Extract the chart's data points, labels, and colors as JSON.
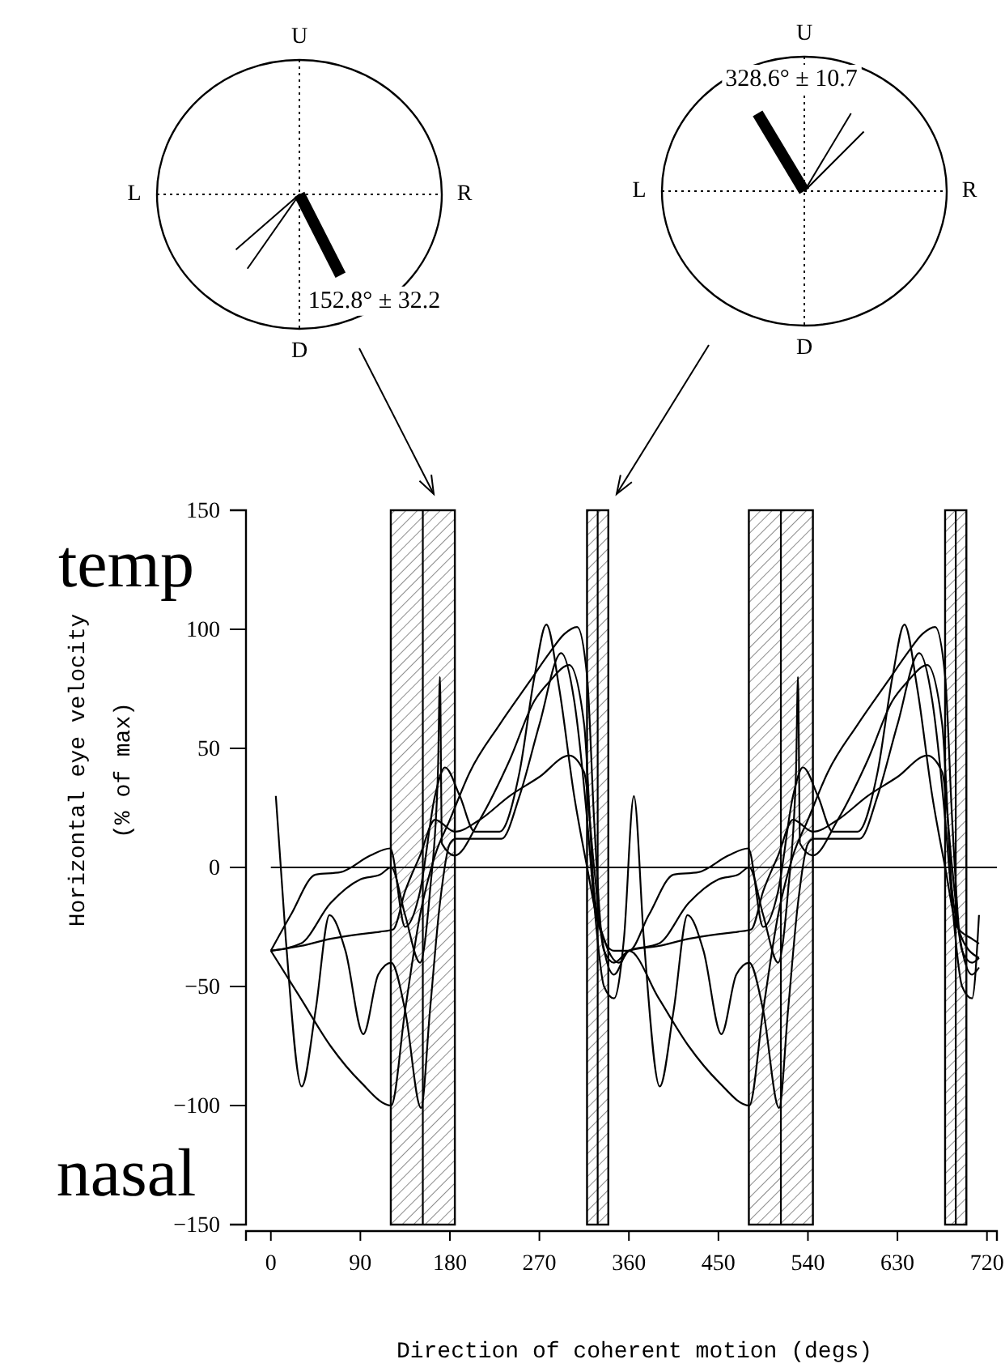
{
  "chart_data": [
    {
      "type": "other",
      "annotations": [
        "U",
        "R",
        "D",
        "L",
        "152.8° ± 32.2"
      ]
    },
    {
      "type": "other",
      "annotations": [
        "U",
        "R",
        "D",
        "L",
        "328.6° ± 10.7"
      ]
    },
    {
      "type": "line",
      "xlabel": "Direction of coherent motion (degs)",
      "ylabel": "Horizontal eye velocity\n(% of max)",
      "annotations": [
        "temp",
        "nasal"
      ],
      "xlim": [
        -25,
        730
      ],
      "ylim": [
        -150,
        150
      ],
      "xticks": [
        0,
        90,
        180,
        270,
        360,
        450,
        540,
        630,
        720
      ],
      "yticks": [
        -150,
        -100,
        -50,
        0,
        50,
        100,
        150
      ],
      "line_style": "solid",
      "bands": [
        {
          "axis": "x",
          "from": 120.6,
          "to": 185,
          "color": "#000000"
        },
        {
          "axis": "x",
          "from": 317.9,
          "to": 339.3,
          "color": "#000000"
        },
        {
          "axis": "x",
          "from": 480.6,
          "to": 545,
          "color": "#000000"
        },
        {
          "axis": "x",
          "from": 677.9,
          "to": 699.3,
          "color": "#000000"
        }
      ],
      "ref_lines": [
        {
          "axis": "x",
          "value": 152.8
        },
        {
          "axis": "x",
          "value": 328.6
        },
        {
          "axis": "x",
          "value": 512.8
        },
        {
          "axis": "x",
          "value": 688.6
        },
        {
          "axis": "y",
          "value": 0
        }
      ],
      "series": [
        {
          "color": "#000000",
          "x": [
            0,
            30,
            60,
            90,
            110,
            123,
            135,
            150,
            165,
            185,
            210,
            240,
            270,
            300,
            315,
            325,
            335,
            345,
            360,
            390,
            420,
            450,
            470,
            483,
            495,
            510,
            525,
            545,
            570,
            600,
            630,
            660,
            675,
            685,
            695,
            705,
            712
          ],
          "values": [
            -35,
            -33,
            -30,
            -28,
            -27,
            -26,
            -10,
            5,
            20,
            15,
            20,
            30,
            38,
            47,
            40,
            0,
            -35,
            -40,
            -35,
            -33,
            -30,
            -28,
            -27,
            -26,
            -10,
            5,
            20,
            15,
            20,
            30,
            38,
            47,
            40,
            0,
            -35,
            -40,
            -38
          ]
        },
        {
          "color": "#000000",
          "x": [
            0,
            20,
            45,
            70,
            100,
            120,
            135,
            150,
            165,
            175,
            190,
            205,
            230,
            250,
            265,
            277,
            290,
            305,
            318,
            330,
            345,
            360,
            380,
            405,
            430,
            460,
            480,
            495,
            510,
            525,
            535,
            550,
            565,
            590,
            610,
            625,
            637,
            650,
            665,
            678,
            690,
            705,
            712
          ],
          "values": [
            -35,
            -20,
            -3,
            -2,
            5,
            8,
            -25,
            -10,
            30,
            42,
            30,
            15,
            15,
            40,
            80,
            102,
            75,
            30,
            0,
            -25,
            -35,
            -35,
            -20,
            -3,
            -2,
            5,
            8,
            -25,
            -10,
            30,
            42,
            30,
            15,
            15,
            40,
            80,
            102,
            75,
            30,
            0,
            -25,
            -30,
            -32
          ]
        },
        {
          "color": "#000000",
          "x": [
            0,
            30,
            60,
            90,
            121,
            135,
            150,
            165,
            180,
            200,
            230,
            260,
            280,
            295,
            308,
            318,
            325,
            333,
            345,
            360,
            390,
            420,
            450,
            481,
            495,
            510,
            525,
            540,
            560,
            590,
            620,
            640,
            655,
            668,
            678,
            685,
            693,
            705,
            712
          ],
          "values": [
            -35,
            -55,
            -75,
            -90,
            -100,
            -60,
            -20,
            5,
            20,
            40,
            60,
            78,
            90,
            98,
            101,
            80,
            20,
            -30,
            -45,
            -35,
            -55,
            -75,
            -90,
            -100,
            -60,
            -20,
            5,
            20,
            40,
            60,
            78,
            90,
            98,
            101,
            80,
            20,
            -30,
            -45,
            -42
          ]
        },
        {
          "color": "#000000",
          "x": [
            5,
            15,
            31,
            45,
            59,
            75,
            93,
            108,
            121,
            135,
            151,
            160,
            170,
            180,
            186,
            210,
            232,
            250,
            270,
            292,
            305,
            318,
            325,
            335,
            345,
            355,
            365,
            375,
            391,
            405,
            419,
            435,
            453,
            468,
            481,
            495,
            511,
            520,
            530,
            540,
            546,
            570,
            592,
            610,
            630,
            652,
            665,
            678,
            685,
            695,
            705,
            712
          ],
          "values": [
            30,
            -30,
            -92,
            -60,
            -20,
            -35,
            -70,
            -45,
            -40,
            -60,
            -101,
            -60,
            -15,
            10,
            12,
            12,
            12,
            30,
            60,
            90,
            70,
            20,
            -15,
            -50,
            -55,
            -30,
            30,
            -30,
            -92,
            -60,
            -20,
            -35,
            -70,
            -45,
            -40,
            -60,
            -101,
            -60,
            -15,
            10,
            12,
            12,
            12,
            30,
            60,
            90,
            70,
            20,
            -15,
            -50,
            -55,
            -20
          ]
        },
        {
          "color": "#000000",
          "x": [
            0,
            30,
            60,
            90,
            110,
            121,
            135,
            150,
            160,
            168,
            170,
            172,
            185,
            210,
            240,
            265,
            280,
            300,
            315,
            325,
            335,
            350,
            360,
            390,
            420,
            450,
            470,
            481,
            495,
            510,
            520,
            528,
            530,
            532,
            545,
            570,
            600,
            625,
            640,
            660,
            675,
            685,
            695,
            712
          ],
          "values": [
            -35,
            -32,
            -15,
            -5,
            -3,
            0,
            -20,
            -40,
            -10,
            40,
            80,
            10,
            5,
            20,
            45,
            70,
            78,
            85,
            60,
            -10,
            -30,
            -40,
            -35,
            -32,
            -15,
            -5,
            -3,
            0,
            -20,
            -40,
            -10,
            40,
            80,
            10,
            5,
            20,
            45,
            70,
            78,
            85,
            60,
            -10,
            -30,
            -38
          ]
        }
      ]
    }
  ]
}
